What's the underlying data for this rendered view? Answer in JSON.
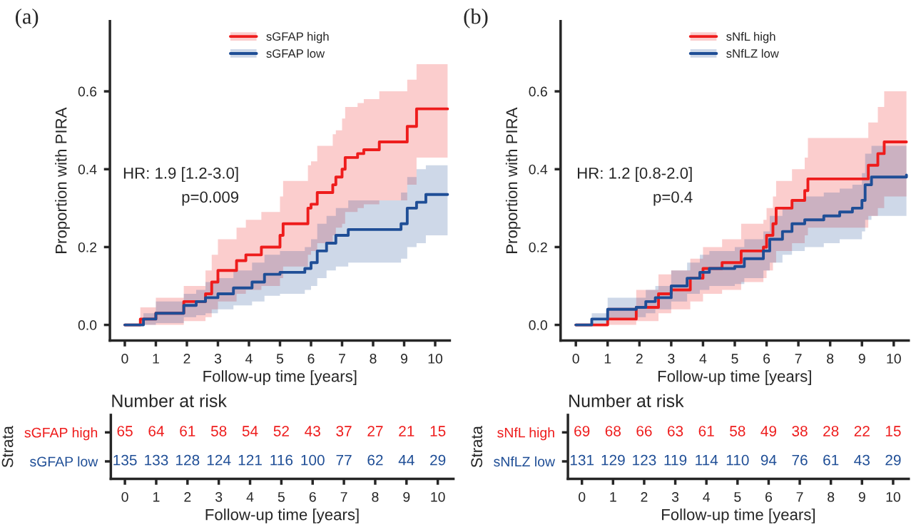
{
  "chart_data": [
    {
      "type": "step",
      "title": "(a)",
      "xlabel": "Follow-up time [years]",
      "ylabel": "Proportion with PIRA",
      "xlim": [
        -0.48,
        10.47
      ],
      "ylim": [
        -0.04,
        0.78
      ],
      "xticks": [
        0,
        1,
        2,
        3,
        4,
        5,
        6,
        7,
        8,
        9,
        10
      ],
      "yticks": [
        {
          "value": 0,
          "label": "0.0"
        },
        {
          "value": 0.2,
          "label": "0.2"
        },
        {
          "value": 0.4,
          "label": "0.4"
        },
        {
          "value": 0.6,
          "label": "0.6"
        }
      ],
      "legend": "top",
      "grid": false,
      "annotations": [
        "HR: 1.9 [1.2-3.0]",
        "p=0.009"
      ],
      "series": [
        {
          "name": "sGFAP high",
          "color": "#ee1c1c",
          "x": [
            0,
            0.5,
            1.0,
            1.9,
            2.6,
            2.8,
            3.0,
            3.6,
            3.9,
            4.4,
            5.0,
            5.1,
            5.9,
            6.0,
            6.2,
            6.7,
            6.8,
            7.0,
            7.1,
            7.5,
            7.7,
            8.2,
            9.1,
            9.4,
            10.4
          ],
          "values": [
            0,
            0.015,
            0.03,
            0.06,
            0.08,
            0.11,
            0.14,
            0.165,
            0.18,
            0.2,
            0.23,
            0.26,
            0.3,
            0.31,
            0.34,
            0.36,
            0.38,
            0.4,
            0.43,
            0.44,
            0.45,
            0.47,
            0.51,
            0.555,
            0.555
          ],
          "lower": [
            0,
            0,
            0,
            0.01,
            0.02,
            0.04,
            0.06,
            0.08,
            0.09,
            0.1,
            0.12,
            0.15,
            0.18,
            0.19,
            0.21,
            0.23,
            0.25,
            0.26,
            0.29,
            0.3,
            0.31,
            0.32,
            0.36,
            0.43,
            0.43
          ],
          "upper": [
            0,
            0.045,
            0.07,
            0.1,
            0.14,
            0.18,
            0.22,
            0.25,
            0.27,
            0.29,
            0.33,
            0.37,
            0.41,
            0.42,
            0.46,
            0.49,
            0.5,
            0.53,
            0.56,
            0.57,
            0.58,
            0.6,
            0.63,
            0.67,
            0.67
          ]
        },
        {
          "name": "sGFAP low",
          "color": "#1f4e96",
          "x": [
            0,
            0.6,
            1.0,
            1.9,
            2.3,
            2.6,
            3.0,
            3.5,
            4.1,
            4.5,
            5.0,
            5.8,
            6.0,
            6.2,
            6.5,
            6.8,
            7.2,
            8.9,
            9.1,
            9.4,
            9.7,
            10.4
          ],
          "values": [
            0,
            0.015,
            0.03,
            0.05,
            0.06,
            0.07,
            0.08,
            0.095,
            0.11,
            0.13,
            0.135,
            0.145,
            0.16,
            0.19,
            0.21,
            0.23,
            0.245,
            0.26,
            0.3,
            0.315,
            0.335,
            0.335
          ],
          "lower": [
            0,
            0,
            0.005,
            0.02,
            0.025,
            0.03,
            0.04,
            0.05,
            0.06,
            0.075,
            0.08,
            0.09,
            0.1,
            0.12,
            0.14,
            0.15,
            0.16,
            0.17,
            0.2,
            0.21,
            0.23,
            0.23
          ],
          "upper": [
            0,
            0.03,
            0.06,
            0.08,
            0.09,
            0.11,
            0.12,
            0.14,
            0.16,
            0.18,
            0.19,
            0.2,
            0.22,
            0.26,
            0.28,
            0.3,
            0.32,
            0.34,
            0.38,
            0.4,
            0.41,
            0.41
          ]
        }
      ]
    },
    {
      "type": "step",
      "title": "(b)",
      "xlabel": "Follow-up time [years]",
      "ylabel": "Proportion with PIRA",
      "xlim": [
        -0.48,
        10.47
      ],
      "ylim": [
        -0.04,
        0.78
      ],
      "xticks": [
        0,
        1,
        2,
        3,
        4,
        5,
        6,
        7,
        8,
        9,
        10
      ],
      "yticks": [
        {
          "value": 0,
          "label": "0.0"
        },
        {
          "value": 0.2,
          "label": "0.2"
        },
        {
          "value": 0.4,
          "label": "0.4"
        },
        {
          "value": 0.6,
          "label": "0.6"
        }
      ],
      "legend": "top",
      "grid": false,
      "annotations": [
        "HR: 1.2 [0.8-2.0]",
        "p=0.4"
      ],
      "series": [
        {
          "name": "sNfL high",
          "color": "#ee1c1c",
          "x": [
            0,
            1.0,
            1.9,
            2.6,
            3.0,
            3.6,
            4.0,
            4.6,
            5.2,
            5.9,
            6.0,
            6.2,
            6.3,
            6.8,
            7.2,
            7.3,
            9.1,
            9.2,
            9.5,
            9.7,
            10.4
          ],
          "values": [
            0,
            0.015,
            0.045,
            0.08,
            0.09,
            0.12,
            0.145,
            0.16,
            0.19,
            0.2,
            0.23,
            0.26,
            0.3,
            0.32,
            0.345,
            0.375,
            0.375,
            0.41,
            0.44,
            0.47,
            0.47
          ],
          "lower": [
            0,
            0,
            0.01,
            0.03,
            0.04,
            0.06,
            0.08,
            0.09,
            0.11,
            0.12,
            0.14,
            0.16,
            0.19,
            0.21,
            0.23,
            0.25,
            0.25,
            0.28,
            0.3,
            0.33,
            0.33
          ],
          "upper": [
            0,
            0.045,
            0.09,
            0.13,
            0.14,
            0.17,
            0.2,
            0.22,
            0.26,
            0.27,
            0.3,
            0.33,
            0.37,
            0.4,
            0.43,
            0.48,
            0.48,
            0.52,
            0.56,
            0.6,
            0.6
          ]
        },
        {
          "name": "sNfLZ low",
          "color": "#1f4e96",
          "x": [
            0,
            0.5,
            1.0,
            1.9,
            2.2,
            2.5,
            3.0,
            3.5,
            3.9,
            4.2,
            5.0,
            5.3,
            5.9,
            6.1,
            6.5,
            6.8,
            7.2,
            7.8,
            8.3,
            8.7,
            9.0,
            9.1,
            9.3,
            10.4
          ],
          "values": [
            0,
            0.015,
            0.04,
            0.045,
            0.06,
            0.07,
            0.1,
            0.12,
            0.135,
            0.145,
            0.15,
            0.17,
            0.19,
            0.22,
            0.24,
            0.26,
            0.27,
            0.28,
            0.29,
            0.3,
            0.32,
            0.36,
            0.38,
            0.385
          ],
          "lower": [
            0,
            0,
            0.015,
            0.02,
            0.03,
            0.04,
            0.06,
            0.08,
            0.09,
            0.1,
            0.105,
            0.12,
            0.14,
            0.16,
            0.18,
            0.19,
            0.2,
            0.21,
            0.22,
            0.22,
            0.24,
            0.27,
            0.28,
            0.28
          ],
          "upper": [
            0,
            0.03,
            0.07,
            0.07,
            0.09,
            0.1,
            0.14,
            0.16,
            0.18,
            0.19,
            0.2,
            0.22,
            0.24,
            0.28,
            0.3,
            0.32,
            0.33,
            0.34,
            0.35,
            0.36,
            0.39,
            0.44,
            0.46,
            0.46
          ]
        }
      ]
    },
    {
      "type": "heatmap",
      "title": "Number at risk",
      "xlabel": "Follow-up time [years]",
      "ylabel": "Strata",
      "categories": [
        "0",
        "1",
        "2",
        "3",
        "4",
        "5",
        "6",
        "7",
        "8",
        "9",
        "10"
      ],
      "y_categories": [
        "sGFAP high",
        "sGFAP low"
      ],
      "colors": [
        "#ee1c1c",
        "#1f4e96"
      ],
      "data_labels": true,
      "cells": [
        [
          65,
          64,
          61,
          58,
          54,
          52,
          43,
          37,
          27,
          21,
          15
        ],
        [
          135,
          133,
          128,
          124,
          121,
          116,
          100,
          77,
          62,
          44,
          29
        ]
      ]
    },
    {
      "type": "heatmap",
      "title": "Number at risk",
      "xlabel": "Follow-up time [years]",
      "ylabel": "Strata",
      "categories": [
        "0",
        "1",
        "2",
        "3",
        "4",
        "5",
        "6",
        "7",
        "8",
        "9",
        "10"
      ],
      "y_categories": [
        "sNfL high",
        "sNfLZ low"
      ],
      "colors": [
        "#ee1c1c",
        "#1f4e96"
      ],
      "data_labels": true,
      "cells": [
        [
          69,
          68,
          66,
          63,
          61,
          58,
          49,
          38,
          28,
          22,
          15
        ],
        [
          131,
          129,
          123,
          119,
          114,
          110,
          94,
          76,
          61,
          43,
          29
        ]
      ]
    }
  ]
}
